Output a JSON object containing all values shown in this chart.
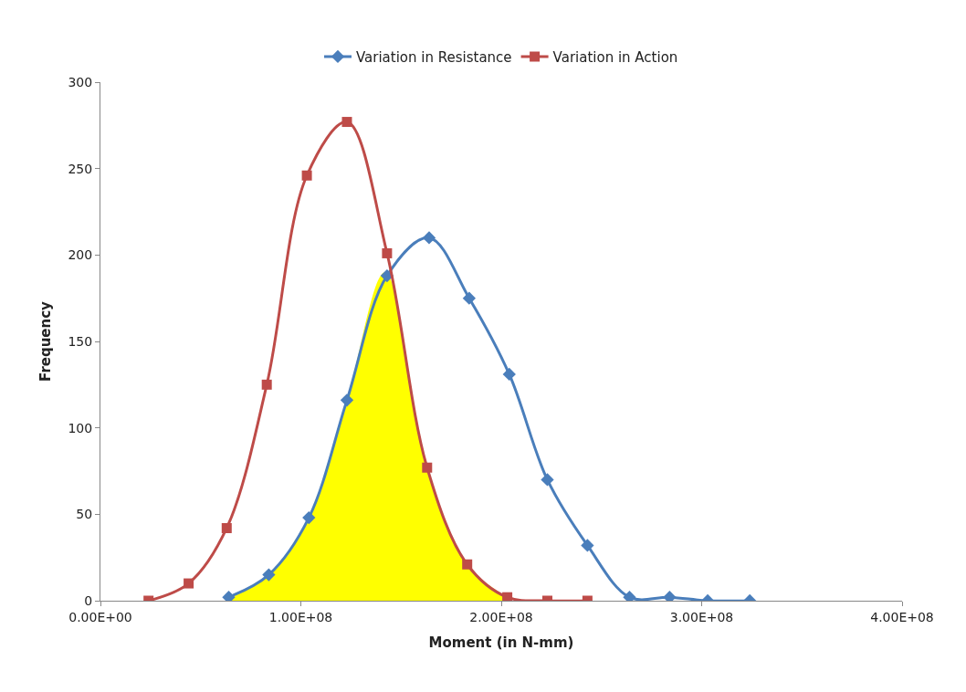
{
  "chart_data": {
    "type": "line",
    "xlabel": "Moment (in N-mm)",
    "ylabel": "Frequency",
    "xlim": [
      0,
      400000000
    ],
    "xticks": [
      {
        "value": 0,
        "label": "0.00E+00"
      },
      {
        "value": 100000000,
        "label": "1.00E+08"
      },
      {
        "value": 200000000,
        "label": "2.00E+08"
      },
      {
        "value": 300000000,
        "label": "3.00E+08"
      },
      {
        "value": 400000000,
        "label": "4.00E+08"
      }
    ],
    "ylim": [
      0,
      300
    ],
    "yticks": [
      0,
      50,
      100,
      150,
      200,
      250,
      300
    ],
    "legend": "top",
    "series": [
      {
        "type": "area",
        "color": "#ffff00",
        "marker": "none",
        "x": [
          64000000,
          84000000,
          104000000,
          123000000,
          142000000,
          163000000,
          183000000,
          203000000
        ],
        "values": [
          2,
          15,
          48,
          116,
          190,
          77,
          21,
          2
        ]
      },
      {
        "name": "Variation in Resistance",
        "color": "#4a7ebb",
        "marker": "diamond",
        "x": [
          64000000,
          84000000,
          104000000,
          123000000,
          143000000,
          164000000,
          184000000,
          204000000,
          223000000,
          243000000,
          264000000,
          284000000,
          303000000,
          324000000
        ],
        "values": [
          2,
          15,
          48,
          116,
          188,
          210,
          175,
          131,
          70,
          32,
          2,
          2,
          0,
          0
        ]
      },
      {
        "name": "Variation in Action",
        "color": "#be4b48",
        "marker": "square",
        "x": [
          24000000,
          44000000,
          63000000,
          83000000,
          103000000,
          123000000,
          143000000,
          163000000,
          183000000,
          203000000,
          223000000,
          243000000
        ],
        "values": [
          0,
          10,
          42,
          125,
          246,
          277,
          201,
          77,
          21,
          2,
          0,
          0
        ]
      }
    ]
  }
}
